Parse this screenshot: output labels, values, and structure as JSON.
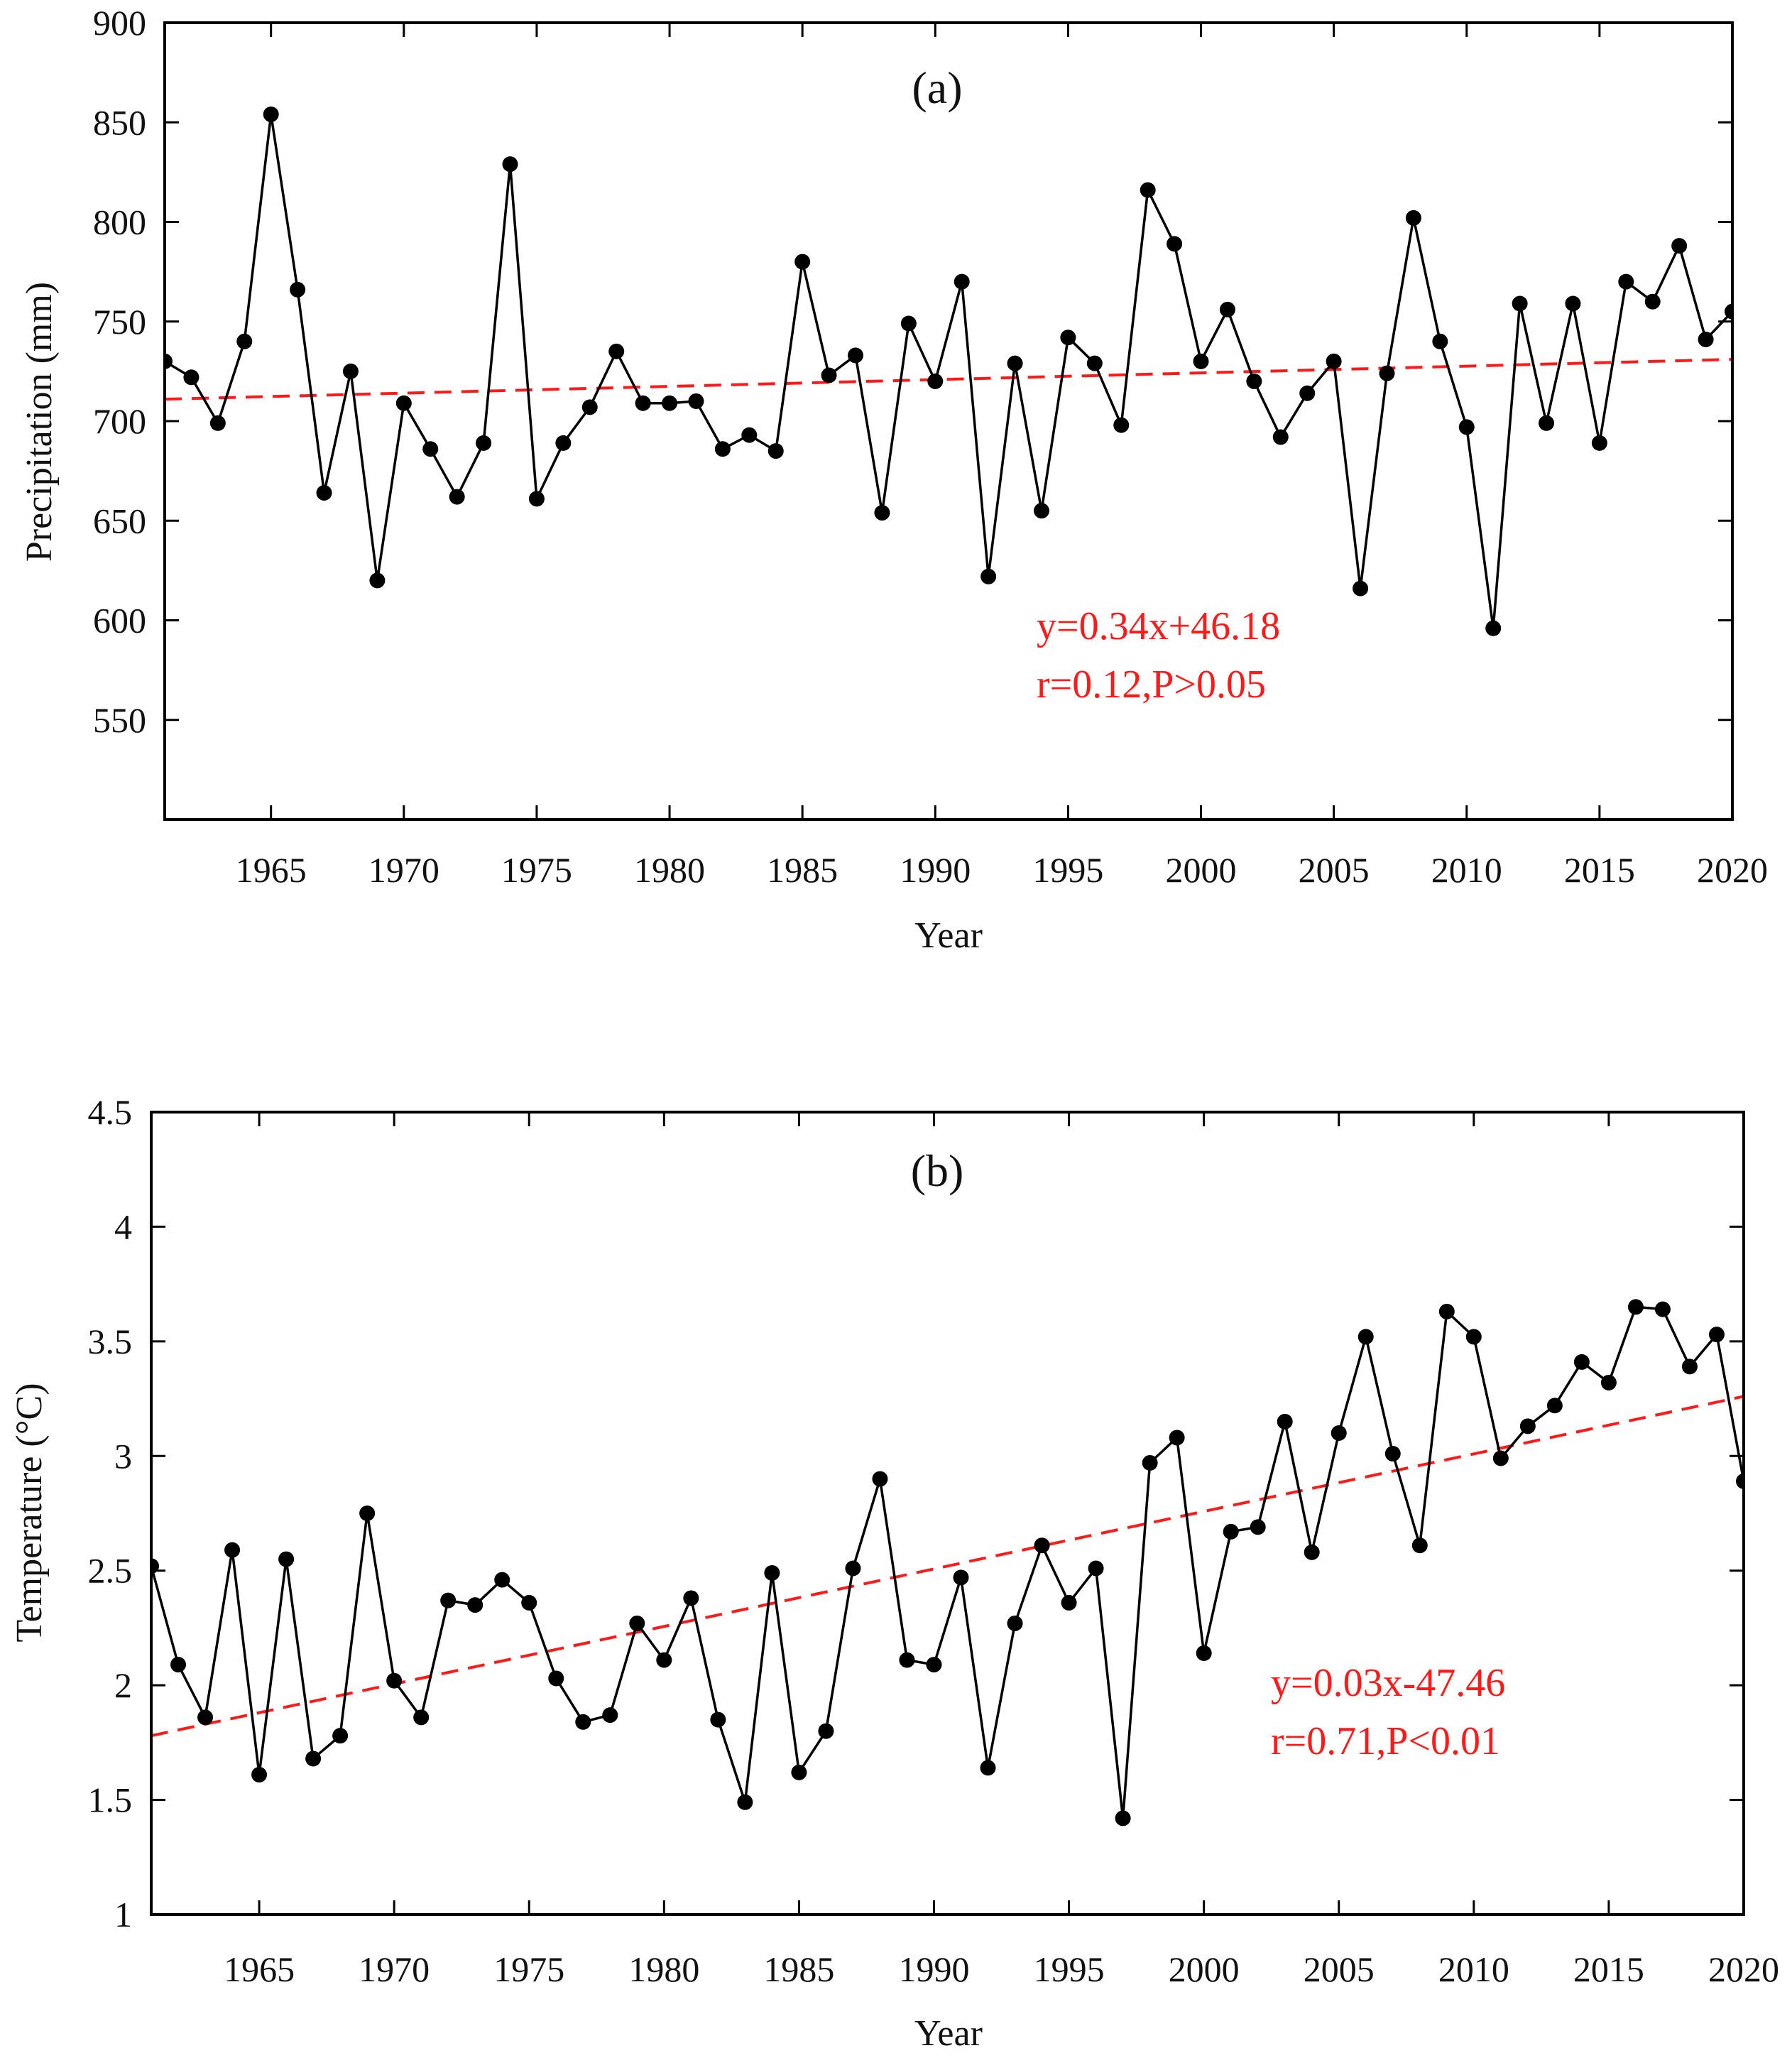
{
  "colors": {
    "data": "#000000",
    "trend": "#ff1a1a",
    "annotation": "#ff1a1a",
    "axis": "#000000"
  },
  "chart_data": [
    {
      "type": "line",
      "panel": "(a)",
      "xlabel": "Year",
      "ylabel": "Precipitation (mm)",
      "xlim": [
        1961,
        2020
      ],
      "ylim": [
        500,
        900
      ],
      "xticks": [
        1965,
        1970,
        1975,
        1980,
        1985,
        1990,
        1995,
        2000,
        2005,
        2010,
        2015,
        2020
      ],
      "yticks": [
        550,
        600,
        650,
        700,
        750,
        800,
        850,
        900
      ],
      "x": [
        1961,
        1962,
        1963,
        1964,
        1965,
        1966,
        1967,
        1968,
        1969,
        1970,
        1971,
        1972,
        1973,
        1974,
        1975,
        1976,
        1977,
        1978,
        1979,
        1980,
        1981,
        1982,
        1983,
        1984,
        1985,
        1986,
        1987,
        1988,
        1989,
        1990,
        1991,
        1992,
        1993,
        1994,
        1995,
        1996,
        1997,
        1998,
        1999,
        2000,
        2001,
        2002,
        2003,
        2004,
        2005,
        2006,
        2007,
        2008,
        2009,
        2010,
        2011,
        2012,
        2013,
        2014,
        2015,
        2016,
        2017,
        2018,
        2019,
        2020
      ],
      "series": [
        {
          "name": "Precipitation",
          "values": [
            730,
            722,
            699,
            740,
            854,
            766,
            664,
            725,
            620,
            709,
            686,
            662,
            689,
            829,
            661,
            689,
            707,
            735,
            709,
            709,
            710,
            686,
            693,
            685,
            780,
            723,
            733,
            654,
            749,
            720,
            770,
            622,
            729,
            655,
            742,
            729,
            698,
            816,
            789,
            730,
            756,
            720,
            692,
            714,
            730,
            616,
            724,
            802,
            740,
            697,
            596,
            759,
            699,
            759,
            689,
            770,
            760,
            788,
            741,
            755
          ]
        }
      ],
      "trend": {
        "name": "Linear trend",
        "start": [
          1961,
          711
        ],
        "end": [
          2020,
          731
        ]
      },
      "annotations": [
        "y=0.34x+46.18",
        "r=0.12,P>0.05"
      ]
    },
    {
      "type": "line",
      "panel": "(b)",
      "xlabel": "Year",
      "ylabel": "Temperature (°C)",
      "xlim": [
        1961,
        2020
      ],
      "ylim": [
        1,
        4.5
      ],
      "xticks": [
        1965,
        1970,
        1975,
        1980,
        1985,
        1990,
        1995,
        2000,
        2005,
        2010,
        2015,
        2020
      ],
      "yticks": [
        1,
        1.5,
        2,
        2.5,
        3,
        3.5,
        4,
        4.5
      ],
      "x": [
        1961,
        1962,
        1963,
        1964,
        1965,
        1966,
        1967,
        1968,
        1969,
        1970,
        1971,
        1972,
        1973,
        1974,
        1975,
        1976,
        1977,
        1978,
        1979,
        1980,
        1981,
        1982,
        1983,
        1984,
        1985,
        1986,
        1987,
        1988,
        1989,
        1990,
        1991,
        1992,
        1993,
        1994,
        1995,
        1996,
        1997,
        1998,
        1999,
        2000,
        2001,
        2002,
        2003,
        2004,
        2005,
        2006,
        2007,
        2008,
        2009,
        2010,
        2011,
        2012,
        2013,
        2014,
        2015,
        2016,
        2017,
        2018,
        2019,
        2020
      ],
      "series": [
        {
          "name": "Temperature",
          "values": [
            2.52,
            2.09,
            1.86,
            2.59,
            1.61,
            2.55,
            1.68,
            1.78,
            2.75,
            2.02,
            1.86,
            2.37,
            2.35,
            2.46,
            2.36,
            2.03,
            1.84,
            1.87,
            2.27,
            2.11,
            2.38,
            1.85,
            1.49,
            2.49,
            1.62,
            1.8,
            2.51,
            2.9,
            2.11,
            2.09,
            2.47,
            1.64,
            2.27,
            2.61,
            2.36,
            2.51,
            1.42,
            2.97,
            3.08,
            2.14,
            2.67,
            2.69,
            3.15,
            2.58,
            3.1,
            3.52,
            3.01,
            2.61,
            3.63,
            3.52,
            2.99,
            3.13,
            3.22,
            3.41,
            3.32,
            3.65,
            3.64,
            3.39,
            3.53,
            2.89
          ]
        }
      ],
      "trend": {
        "name": "Linear trend",
        "start": [
          1961,
          1.78
        ],
        "end": [
          2020,
          3.26
        ]
      },
      "annotations": [
        "y=0.03x-47.46",
        "r=0.71,P<0.01"
      ]
    }
  ]
}
